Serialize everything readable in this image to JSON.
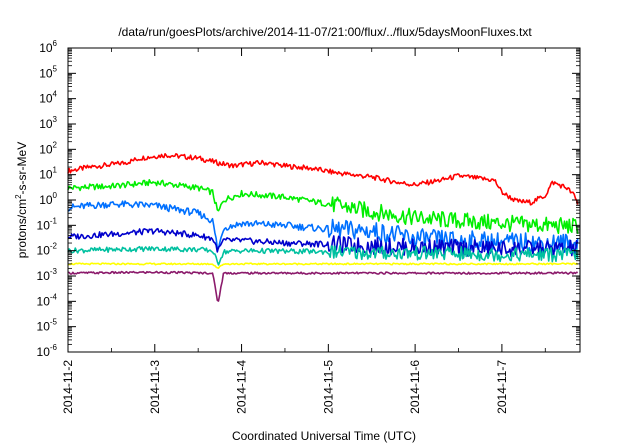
{
  "chart_data": {
    "type": "line",
    "title": "/data/run/goesPlots/archive/2014-11-07/21:00/flux/../flux/5daysMoonFluxes.txt",
    "xlabel": "Coordinated Universal Time (UTC)",
    "ylabel": "protons/cm²-s-sr-MeV",
    "ylabel_parts": {
      "pre": "protons/cm",
      "sup": "2",
      "post": "-s-sr-MeV"
    },
    "yscale": "log",
    "ylim": [
      1e-06,
      1000000.0
    ],
    "xlim_days": [
      0,
      5.9
    ],
    "x_ticks": [
      {
        "label": "2014-11-2",
        "day": 0
      },
      {
        "label": "2014-11-3",
        "day": 1
      },
      {
        "label": "2014-11-4",
        "day": 2
      },
      {
        "label": "2014-11-5",
        "day": 3
      },
      {
        "label": "2014-11-6",
        "day": 4
      },
      {
        "label": "2014-11-7",
        "day": 5
      }
    ],
    "y_ticks": [
      {
        "base": "10",
        "exp": "-6",
        "value": 1e-06
      },
      {
        "base": "10",
        "exp": "-5",
        "value": 1e-05
      },
      {
        "base": "10",
        "exp": "-4",
        "value": 0.0001
      },
      {
        "base": "10",
        "exp": "-3",
        "value": 0.001
      },
      {
        "base": "10",
        "exp": "-2",
        "value": 0.01
      },
      {
        "base": "10",
        "exp": "-1",
        "value": 0.1
      },
      {
        "base": "10",
        "exp": "0",
        "value": 1
      },
      {
        "base": "10",
        "exp": "1",
        "value": 10
      },
      {
        "base": "10",
        "exp": "2",
        "value": 100
      },
      {
        "base": "10",
        "exp": "3",
        "value": 1000
      },
      {
        "base": "10",
        "exp": "4",
        "value": 10000
      },
      {
        "base": "10",
        "exp": "5",
        "value": 100000
      },
      {
        "base": "10",
        "exp": "6",
        "value": 1000000
      }
    ],
    "grid": false,
    "legend": "none",
    "series": [
      {
        "color": "#ff0000",
        "x": [
          "2014-11-02 00:00",
          "2014-11-02 06:00",
          "2014-11-02 12:00",
          "2014-11-02 16:00",
          "2014-11-02 20:00",
          "2014-11-03 03:00",
          "2014-11-03 12:00",
          "2014-11-03 18:00",
          "2014-11-03 22:00",
          "2014-11-04 00:00",
          "2014-11-04 06:00",
          "2014-11-04 12:00",
          "2014-11-04 19:00",
          "2014-11-05 02:00",
          "2014-11-05 12:00",
          "2014-11-05 19:00",
          "2014-11-06 00:00",
          "2014-11-06 07:00",
          "2014-11-06 12:00",
          "2014-11-06 18:00",
          "2014-11-06 22:00",
          "2014-11-07 00:00",
          "2014-11-07 04:00",
          "2014-11-07 08:00",
          "2014-11-07 12:00",
          "2014-11-07 14:00",
          "2014-11-07 18:00",
          "2014-11-07 20:00",
          "2014-11-07 21:00"
        ],
        "values": [
          14,
          20,
          25,
          30,
          45,
          60,
          45,
          28,
          22,
          25,
          30,
          22,
          18,
          12,
          8,
          5,
          4,
          6,
          9,
          7,
          6,
          2,
          0.9,
          0.8,
          1.5,
          5,
          3,
          1.5,
          0.7
        ]
      },
      {
        "color": "#00ee00",
        "x": [
          "2014-11-02 00:00",
          "2014-11-02 12:00",
          "2014-11-03 00:00",
          "2014-11-03 12:00",
          "2014-11-03 16:00",
          "2014-11-03 17:30",
          "2014-11-03 19:00",
          "2014-11-04 00:00",
          "2014-11-04 12:00",
          "2014-11-05 00:00",
          "2014-11-05 12:00",
          "2014-11-06 00:00",
          "2014-11-06 12:00",
          "2014-11-07 00:00",
          "2014-11-07 12:00",
          "2014-11-07 21:00"
        ],
        "values": [
          3,
          3.5,
          5,
          3,
          2,
          0.3,
          1,
          1.8,
          1.3,
          0.7,
          0.35,
          0.2,
          0.15,
          0.12,
          0.1,
          0.09
        ]
      },
      {
        "color": "#0070ff",
        "x": [
          "2014-11-02 00:00",
          "2014-11-02 12:00",
          "2014-11-03 00:00",
          "2014-11-03 12:00",
          "2014-11-03 16:00",
          "2014-11-03 17:30",
          "2014-11-03 19:00",
          "2014-11-04 00:00",
          "2014-11-04 12:00",
          "2014-11-05 00:00",
          "2014-11-05 12:00",
          "2014-11-06 00:00",
          "2014-11-06 12:00",
          "2014-11-07 00:00",
          "2014-11-07 12:00",
          "2014-11-07 21:00"
        ],
        "values": [
          0.5,
          0.7,
          0.6,
          0.3,
          0.15,
          0.01,
          0.08,
          0.12,
          0.1,
          0.07,
          0.06,
          0.03,
          0.025,
          0.022,
          0.02,
          0.02
        ]
      },
      {
        "color": "#0000cc",
        "x": [
          "2014-11-02 00:00",
          "2014-11-02 12:00",
          "2014-11-03 00:00",
          "2014-11-03 12:00",
          "2014-11-03 16:00",
          "2014-11-03 17:30",
          "2014-11-03 19:00",
          "2014-11-04 00:00",
          "2014-11-04 12:00",
          "2014-11-05 00:00",
          "2014-11-05 12:00",
          "2014-11-06 00:00",
          "2014-11-06 12:00",
          "2014-11-07 00:00",
          "2014-11-07 12:00",
          "2014-11-07 21:00"
        ],
        "values": [
          0.035,
          0.045,
          0.06,
          0.04,
          0.03,
          0.01,
          0.025,
          0.025,
          0.02,
          0.018,
          0.015,
          0.014,
          0.013,
          0.012,
          0.012,
          0.012
        ]
      },
      {
        "color": "#00c0a0",
        "x": [
          "2014-11-02 00:00",
          "2014-11-02 12:00",
          "2014-11-03 00:00",
          "2014-11-03 12:00",
          "2014-11-03 16:00",
          "2014-11-03 17:30",
          "2014-11-03 19:00",
          "2014-11-04 00:00",
          "2014-11-04 12:00",
          "2014-11-05 00:00",
          "2014-11-05 12:00",
          "2014-11-06 00:00",
          "2014-11-06 12:00",
          "2014-11-07 00:00",
          "2014-11-07 12:00",
          "2014-11-07 21:00"
        ],
        "values": [
          0.01,
          0.011,
          0.012,
          0.011,
          0.01,
          0.003,
          0.009,
          0.01,
          0.0095,
          0.009,
          0.008,
          0.008,
          0.0075,
          0.007,
          0.007,
          0.007
        ]
      },
      {
        "color": "#ffff00",
        "x": [
          "2014-11-02 00:00",
          "2014-11-03 00:00",
          "2014-11-03 16:00",
          "2014-11-03 17:30",
          "2014-11-03 19:00",
          "2014-11-04 00:00",
          "2014-11-05 00:00",
          "2014-11-06 00:00",
          "2014-11-07 00:00",
          "2014-11-07 21:00"
        ],
        "values": [
          0.003,
          0.003,
          0.003,
          0.002,
          0.003,
          0.003,
          0.003,
          0.003,
          0.003,
          0.003
        ]
      },
      {
        "color": "#8b1a6b",
        "x": [
          "2014-11-02 00:00",
          "2014-11-03 00:00",
          "2014-11-03 16:00",
          "2014-11-03 17:30",
          "2014-11-03 19:00",
          "2014-11-04 00:00",
          "2014-11-05 00:00",
          "2014-11-06 00:00",
          "2014-11-07 00:00",
          "2014-11-07 21:00"
        ],
        "values": [
          0.0013,
          0.0014,
          0.0013,
          8e-05,
          0.0013,
          0.0013,
          0.0013,
          0.0013,
          0.0013,
          0.0013
        ]
      }
    ]
  }
}
